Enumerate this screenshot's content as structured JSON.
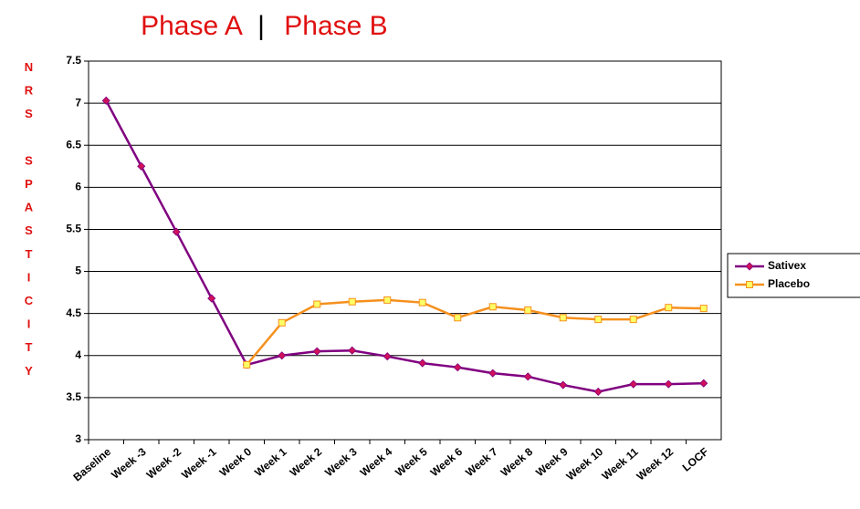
{
  "chart_data": {
    "type": "line",
    "title_left": "Phase A",
    "title_separator": "|",
    "title_right": "Phase B",
    "y_label": "NRS SPASTICITY",
    "categories": [
      "Baseline",
      "Week -3",
      "Week -2",
      "Week -1",
      "Week 0",
      "Week 1",
      "Week 2",
      "Week 3",
      "Week 4",
      "Week 5",
      "Week 6",
      "Week 7",
      "Week 8",
      "Week 9",
      "Week 10",
      "Week 11",
      "Week 12",
      "LOCF"
    ],
    "series": [
      {
        "name": "Sativex",
        "color": "#800080",
        "marker_color": "#d0105a",
        "marker": "diamond",
        "values": [
          7.03,
          6.25,
          5.47,
          4.68,
          3.89,
          4.0,
          4.05,
          4.06,
          3.99,
          3.91,
          3.86,
          3.79,
          3.75,
          3.65,
          3.57,
          3.66,
          3.66,
          3.67
        ]
      },
      {
        "name": "Placebo",
        "color": "#f5901e",
        "marker_color": "#ffff66",
        "marker": "square",
        "values": [
          null,
          null,
          null,
          null,
          3.89,
          4.39,
          4.61,
          4.64,
          4.66,
          4.63,
          4.45,
          4.58,
          4.54,
          4.45,
          4.43,
          4.43,
          4.57,
          4.56
        ]
      }
    ],
    "ylim": [
      3,
      7.5
    ],
    "yticks": [
      3,
      3.5,
      4,
      4.5,
      5,
      5.5,
      6,
      6.5,
      7,
      7.5
    ],
    "grid": true,
    "legend": "right"
  }
}
